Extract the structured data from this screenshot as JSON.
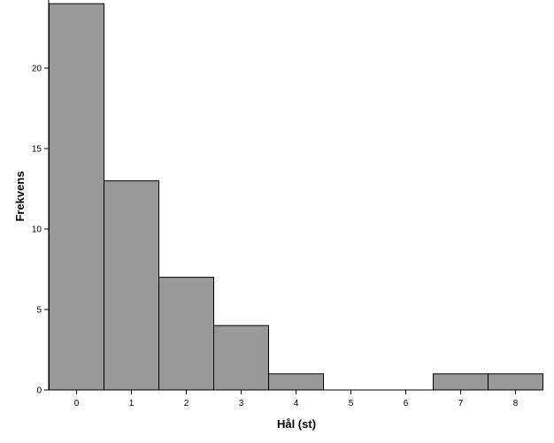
{
  "chart_data": {
    "type": "bar",
    "title": "",
    "xlabel": "Hål (st)",
    "ylabel": "Frekvens",
    "categories": [
      "0",
      "1",
      "2",
      "3",
      "4",
      "5",
      "6",
      "7",
      "8"
    ],
    "values": [
      24,
      13,
      7,
      4,
      1,
      0,
      0,
      1,
      1
    ],
    "ylim": [
      0,
      24.5
    ],
    "yticks": [
      0,
      5,
      10,
      15,
      20
    ],
    "grid": false,
    "legend": "none",
    "bar_color": "#999999",
    "bar_edge_color": "#000000"
  }
}
